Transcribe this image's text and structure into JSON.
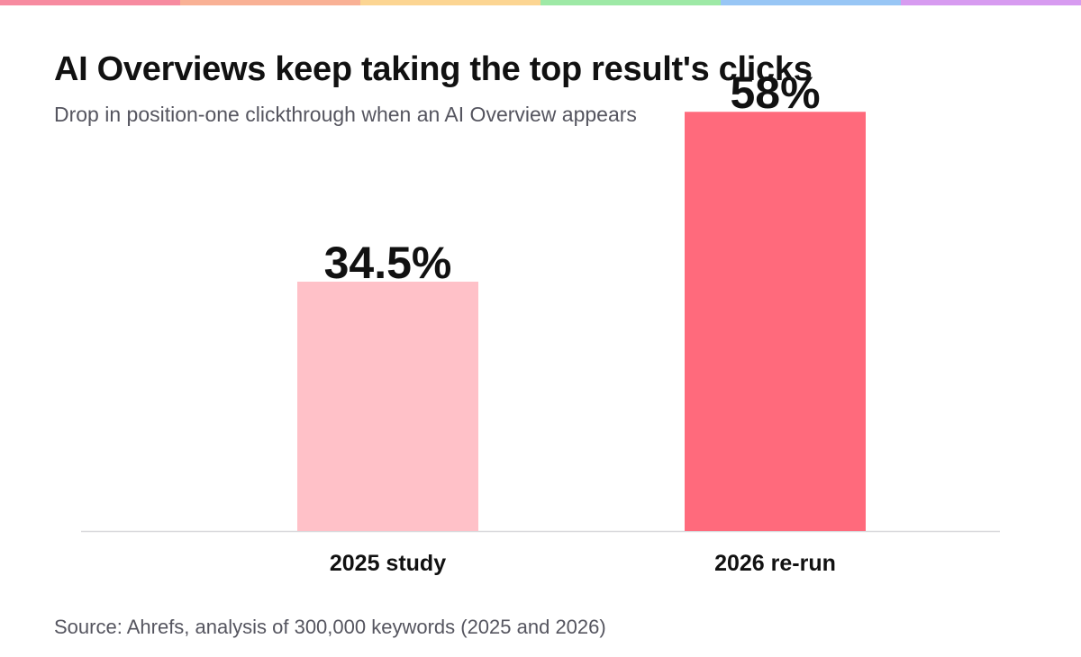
{
  "stripe_colors": [
    "#f78ba0",
    "#f9b195",
    "#fcd592",
    "#9ee9a6",
    "#98c6f5",
    "#d79bf0"
  ],
  "title": "AI Overviews keep taking the top result's clicks",
  "subtitle": "Drop in position-one clickthrough when an AI Overview appears",
  "source": "Source: Ahrefs, analysis of 300,000 keywords (2025 and 2026)",
  "chart_data": {
    "type": "bar",
    "categories": [
      "2025 study",
      "2026 re-run"
    ],
    "values": [
      34.5,
      58
    ],
    "value_labels": [
      "34.5%",
      "58%"
    ],
    "bar_colors": [
      "#ffc1c8",
      "#ff6a7c"
    ],
    "ylim": [
      0,
      66
    ],
    "grid": false,
    "xlabel": "",
    "ylabel": ""
  }
}
